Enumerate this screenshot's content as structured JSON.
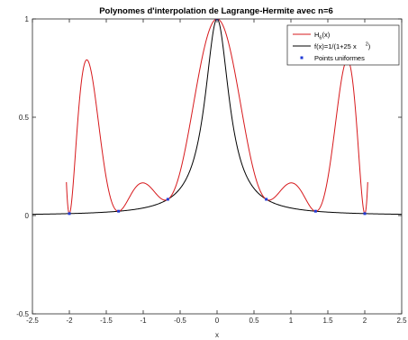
{
  "chart_data": {
    "type": "line",
    "title": "Polynomes d'interpolation de Lagrange-Hermite avec n=6",
    "xlabel": "x",
    "ylabel": "",
    "xlim": [
      -2.5,
      2.5
    ],
    "ylim": [
      -0.5,
      1
    ],
    "x_ticks": [
      "-2.5",
      "-2",
      "-1.5",
      "-1",
      "-0.5",
      "0",
      "0.5",
      "1",
      "1.5",
      "2",
      "2.5"
    ],
    "y_ticks": [
      "-0.5",
      "0",
      "0.5",
      "1"
    ],
    "grid": false,
    "legend_position": "top-right",
    "series": [
      {
        "name": "H6(x)",
        "legend_main": "H",
        "legend_sub": "6",
        "legend_tail": "(x)",
        "color": "#d7191c",
        "kind": "line"
      },
      {
        "name": "f(x)=1/(1+25 x²)",
        "legend_main": "f(x)=1/(1+25 x",
        "legend_sup": "2",
        "legend_tail": ")",
        "color": "#000000",
        "kind": "line"
      },
      {
        "name": "Points uniformes",
        "legend_main": "Points uniformes",
        "color": "#1f3ad6",
        "kind": "marker",
        "x": [
          -2,
          -1.3333,
          -0.6667,
          0,
          0.6667,
          1.3333,
          2
        ],
        "y": [
          0.0099,
          0.022,
          0.0826,
          1,
          0.0826,
          0.022,
          0.0099
        ]
      }
    ]
  }
}
